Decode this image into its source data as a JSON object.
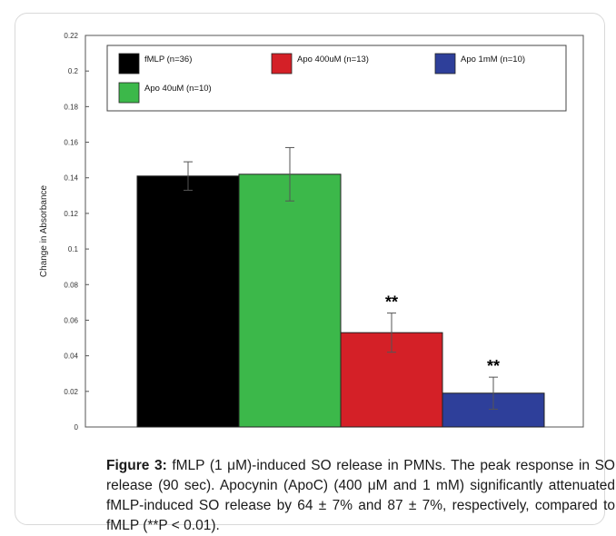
{
  "caption": {
    "label": "Figure 3:",
    "text": "fMLP (1 μM)-induced SO release in PMNs. The peak response in SO release (90 sec). Apocynin (ApoC) (400 μM and 1 mM) significantly attenuated fMLP-induced SO release by 64 ± 7% and 87 ± 7%, respectively, compared to fMLP (**P < 0.01)."
  },
  "chart_data": {
    "type": "bar",
    "title": "",
    "xlabel": "",
    "ylabel": "Change in Absorbance",
    "ylim": [
      0,
      0.22
    ],
    "yticks": [
      "0",
      "0.02",
      "0.04",
      "0.06",
      "0.08",
      "0.1",
      "0.12",
      "0.14",
      "0.16",
      "0.18",
      "0.2",
      "0.22"
    ],
    "grid": false,
    "legend_position": "top",
    "series": [
      {
        "name": "fMLP (n=36)",
        "value": 0.141,
        "error": 0.008,
        "color": "#000000",
        "annotation": ""
      },
      {
        "name": "Apo 40uM (n=10)",
        "value": 0.142,
        "error": 0.015,
        "color": "#3cb84a",
        "annotation": ""
      },
      {
        "name": "Apo 400uM (n=13)",
        "value": 0.053,
        "error": 0.011,
        "color": "#d42027",
        "annotation": "**"
      },
      {
        "name": "Apo 1mM (n=10)",
        "value": 0.019,
        "error": 0.009,
        "color": "#2e3f9a",
        "annotation": "**"
      }
    ],
    "legend": [
      {
        "name": "fMLP (n=36)",
        "color": "#000000"
      },
      {
        "name": "Apo 400uM (n=13)",
        "color": "#d42027"
      },
      {
        "name": "Apo 1mM (n=10)",
        "color": "#2e3f9a"
      },
      {
        "name": "Apo 40uM (n=10)",
        "color": "#3cb84a"
      }
    ]
  }
}
